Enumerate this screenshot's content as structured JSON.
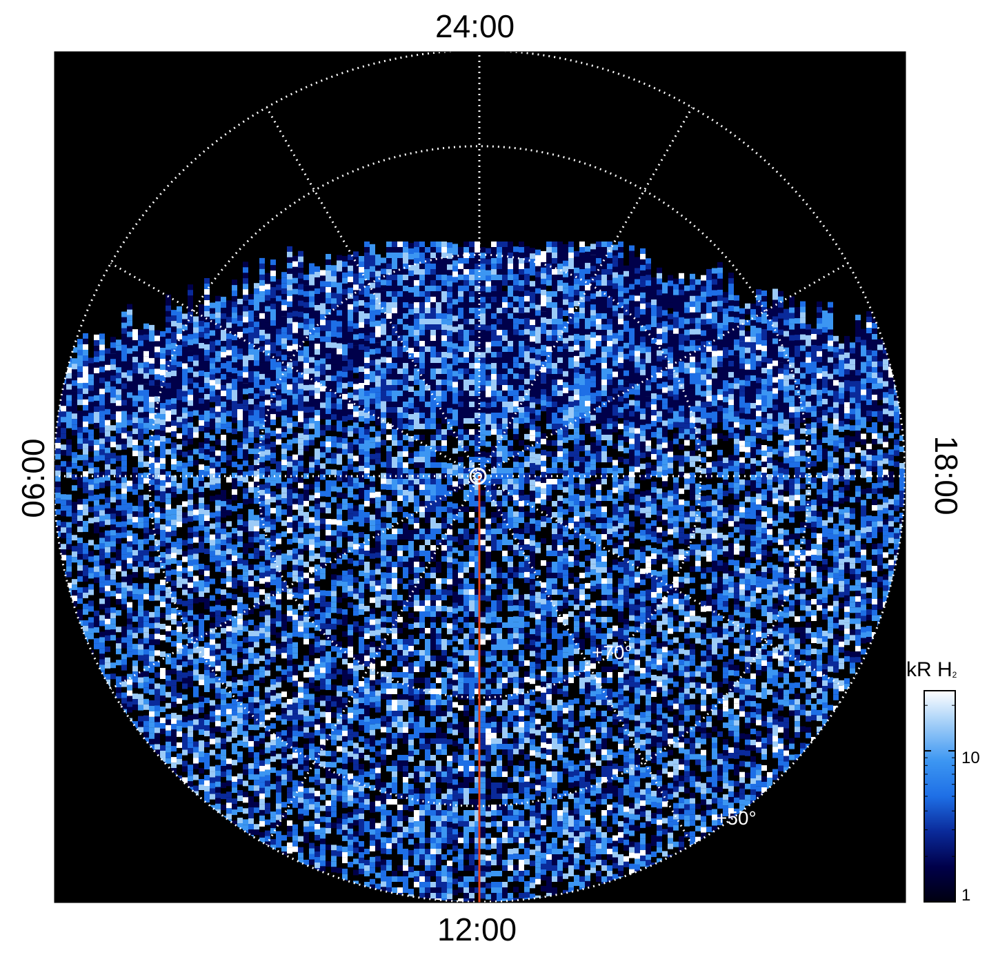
{
  "figure": {
    "local_time_labels": {
      "top": "24:00",
      "bottom": "12:00",
      "left": "06:00",
      "right": "18:00"
    },
    "latitude_labels": {
      "inner": "+70°",
      "outer": "+50°"
    },
    "colorbar": {
      "title": "kR H",
      "title_subscript": "2",
      "tick_labels": {
        "ten": "10",
        "one": "1"
      },
      "scale": "log",
      "range": [
        1,
        25
      ],
      "colors": [
        "#000010",
        "#00004a",
        "#0a2a9a",
        "#1e6fe6",
        "#3c96f2",
        "#9ccbf7",
        "#ffffff"
      ]
    },
    "colors": {
      "plot_background": "#000000",
      "meridian_line": "#e0401a",
      "grid": "#ffffff"
    }
  }
}
